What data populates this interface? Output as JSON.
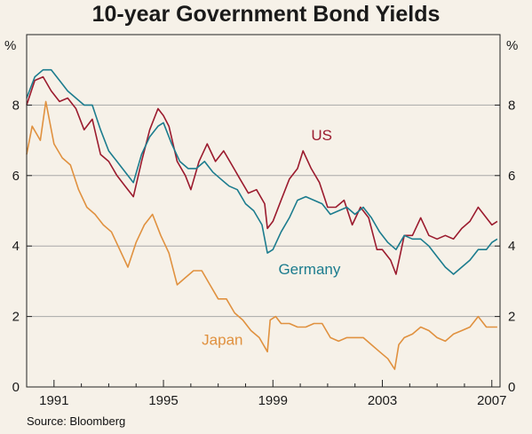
{
  "title": "10-year Government Bond Yields",
  "source": "Source: Bloomberg",
  "chart_data": {
    "type": "line",
    "title": "10-year Government Bond Yields",
    "y_unit": "%",
    "ylim": [
      0,
      10
    ],
    "yticks": [
      0,
      2,
      4,
      6,
      8
    ],
    "xlim": [
      1990.0,
      2007.3
    ],
    "xticks": [
      1991,
      1995,
      1999,
      2003,
      2007
    ],
    "grid": true,
    "series": [
      {
        "name": "US",
        "color": "#9b1b2e",
        "x": [
          1990.0,
          1990.3,
          1990.6,
          1990.9,
          1991.2,
          1991.5,
          1991.8,
          1992.1,
          1992.4,
          1992.7,
          1993.0,
          1993.3,
          1993.6,
          1993.9,
          1994.2,
          1994.5,
          1994.8,
          1995.0,
          1995.2,
          1995.5,
          1995.8,
          1996.0,
          1996.3,
          1996.6,
          1996.9,
          1997.2,
          1997.5,
          1997.8,
          1998.1,
          1998.4,
          1998.7,
          1998.8,
          1999.0,
          1999.3,
          1999.6,
          1999.9,
          2000.1,
          2000.4,
          2000.7,
          2001.0,
          2001.3,
          2001.6,
          2001.9,
          2002.2,
          2002.5,
          2002.8,
          2003.0,
          2003.3,
          2003.5,
          2003.8,
          2004.1,
          2004.4,
          2004.7,
          2005.0,
          2005.3,
          2005.6,
          2005.9,
          2006.2,
          2006.5,
          2006.8,
          2007.0,
          2007.2
        ],
        "values": [
          8.0,
          8.7,
          8.8,
          8.4,
          8.1,
          8.2,
          7.9,
          7.3,
          7.6,
          6.6,
          6.4,
          6.0,
          5.7,
          5.4,
          6.4,
          7.3,
          7.9,
          7.7,
          7.4,
          6.4,
          6.0,
          5.6,
          6.4,
          6.9,
          6.4,
          6.7,
          6.3,
          5.9,
          5.5,
          5.6,
          5.2,
          4.5,
          4.7,
          5.3,
          5.9,
          6.2,
          6.7,
          6.2,
          5.8,
          5.1,
          5.1,
          5.3,
          4.6,
          5.1,
          4.8,
          3.9,
          3.9,
          3.6,
          3.2,
          4.3,
          4.3,
          4.8,
          4.3,
          4.2,
          4.3,
          4.2,
          4.5,
          4.7,
          5.1,
          4.8,
          4.6,
          4.7
        ]
      },
      {
        "name": "Germany",
        "color": "#1c7c8e",
        "x": [
          1990.0,
          1990.3,
          1990.6,
          1990.9,
          1991.2,
          1991.5,
          1991.8,
          1992.1,
          1992.4,
          1992.7,
          1993.0,
          1993.3,
          1993.6,
          1993.9,
          1994.2,
          1994.5,
          1994.8,
          1995.0,
          1995.3,
          1995.6,
          1995.9,
          1996.2,
          1996.5,
          1996.8,
          1997.1,
          1997.4,
          1997.7,
          1998.0,
          1998.3,
          1998.6,
          1998.8,
          1999.0,
          1999.3,
          1999.6,
          1999.9,
          2000.2,
          2000.5,
          2000.8,
          2001.1,
          2001.4,
          2001.7,
          2002.0,
          2002.3,
          2002.6,
          2002.9,
          2003.2,
          2003.5,
          2003.8,
          2004.1,
          2004.4,
          2004.7,
          2005.0,
          2005.3,
          2005.6,
          2005.9,
          2006.2,
          2006.5,
          2006.8,
          2007.0,
          2007.2
        ],
        "values": [
          8.2,
          8.8,
          9.0,
          9.0,
          8.7,
          8.4,
          8.2,
          8.0,
          8.0,
          7.3,
          6.7,
          6.4,
          6.1,
          5.8,
          6.6,
          7.1,
          7.4,
          7.5,
          6.9,
          6.4,
          6.2,
          6.2,
          6.4,
          6.1,
          5.9,
          5.7,
          5.6,
          5.2,
          5.0,
          4.6,
          3.8,
          3.9,
          4.4,
          4.8,
          5.3,
          5.4,
          5.3,
          5.2,
          4.9,
          5.0,
          5.1,
          4.9,
          5.1,
          4.8,
          4.4,
          4.1,
          3.9,
          4.3,
          4.2,
          4.2,
          4.0,
          3.7,
          3.4,
          3.2,
          3.4,
          3.6,
          3.9,
          3.9,
          4.1,
          4.2
        ]
      },
      {
        "name": "Japan",
        "color": "#e0913f",
        "x": [
          1990.0,
          1990.2,
          1990.5,
          1990.7,
          1991.0,
          1991.3,
          1991.6,
          1991.9,
          1992.2,
          1992.5,
          1992.8,
          1993.1,
          1993.4,
          1993.7,
          1994.0,
          1994.3,
          1994.6,
          1994.9,
          1995.2,
          1995.5,
          1995.8,
          1996.1,
          1996.4,
          1996.7,
          1997.0,
          1997.3,
          1997.6,
          1997.9,
          1998.2,
          1998.5,
          1998.8,
          1998.9,
          1999.1,
          1999.3,
          1999.6,
          1999.9,
          2000.2,
          2000.5,
          2000.8,
          2001.1,
          2001.4,
          2001.7,
          2002.0,
          2002.3,
          2002.6,
          2002.9,
          2003.2,
          2003.45,
          2003.6,
          2003.8,
          2004.1,
          2004.4,
          2004.7,
          2005.0,
          2005.3,
          2005.6,
          2005.9,
          2006.2,
          2006.5,
          2006.8,
          2007.0,
          2007.2
        ],
        "values": [
          6.6,
          7.4,
          7.0,
          8.1,
          6.9,
          6.5,
          6.3,
          5.6,
          5.1,
          4.9,
          4.6,
          4.4,
          3.9,
          3.4,
          4.1,
          4.6,
          4.9,
          4.3,
          3.8,
          2.9,
          3.1,
          3.3,
          3.3,
          2.9,
          2.5,
          2.5,
          2.1,
          1.9,
          1.6,
          1.4,
          1.0,
          1.9,
          2.0,
          1.8,
          1.8,
          1.7,
          1.7,
          1.8,
          1.8,
          1.4,
          1.3,
          1.4,
          1.4,
          1.4,
          1.2,
          1.0,
          0.8,
          0.5,
          1.2,
          1.4,
          1.5,
          1.7,
          1.6,
          1.4,
          1.3,
          1.5,
          1.6,
          1.7,
          2.0,
          1.7,
          1.7,
          1.7
        ]
      }
    ]
  }
}
